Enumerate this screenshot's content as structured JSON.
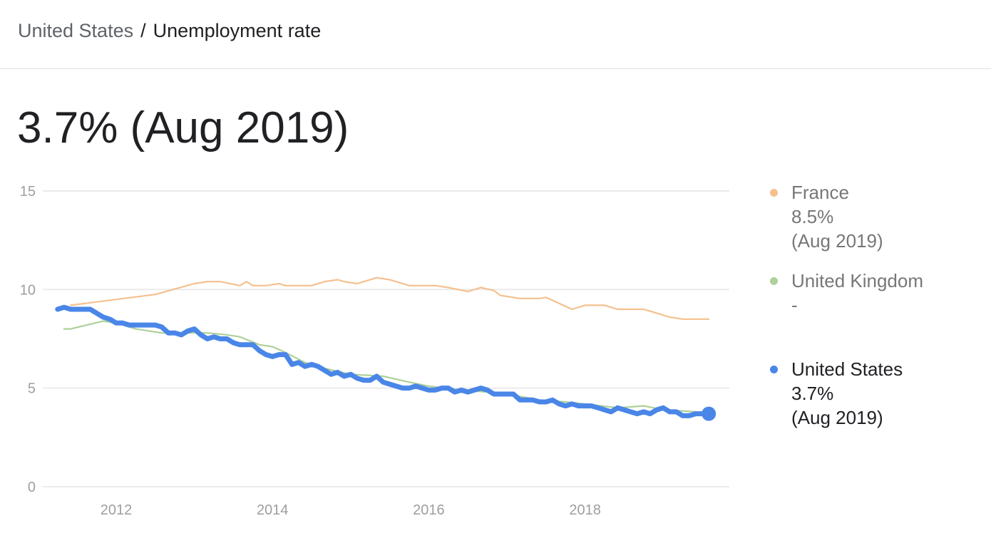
{
  "breadcrumb": {
    "country": "United States",
    "separator": "/",
    "metric": "Unemployment rate"
  },
  "headline": "3.7% (Aug 2019)",
  "legend": [
    {
      "name": "France",
      "value": "8.5%",
      "date": "(Aug 2019)",
      "color": "#f5c08e"
    },
    {
      "name": "United Kingdom",
      "value": "-",
      "date": "",
      "color": "#aed09a"
    },
    {
      "name": "United States",
      "value": "3.7%",
      "date": "(Aug 2019)",
      "color": "#4a86e8"
    }
  ],
  "chart_data": {
    "type": "line",
    "title": "",
    "xlabel": "",
    "ylabel": "",
    "ylim": [
      0,
      15
    ],
    "yticks": [
      "0",
      "5",
      "10",
      "15"
    ],
    "xticks": [
      "2012",
      "2014",
      "2016",
      "2018"
    ],
    "grid": true,
    "legend_position": "right",
    "series": [
      {
        "name": "France",
        "color": "#f5c08e",
        "points": [
          [
            "2011-06",
            9.2
          ],
          [
            "2012-07",
            9.75
          ],
          [
            "2013-01",
            10.3
          ],
          [
            "2013-03",
            10.4
          ],
          [
            "2013-05",
            10.4
          ],
          [
            "2013-08",
            10.2
          ],
          [
            "2013-09",
            10.4
          ],
          [
            "2013-10",
            10.2
          ],
          [
            "2013-12",
            10.2
          ],
          [
            "2014-02",
            10.3
          ],
          [
            "2014-03",
            10.2
          ],
          [
            "2014-07",
            10.2
          ],
          [
            "2014-09",
            10.4
          ],
          [
            "2014-11",
            10.5
          ],
          [
            "2014-12",
            10.4
          ],
          [
            "2015-02",
            10.3
          ],
          [
            "2015-05",
            10.6
          ],
          [
            "2015-07",
            10.5
          ],
          [
            "2015-10",
            10.2
          ],
          [
            "2016-02",
            10.2
          ],
          [
            "2016-04",
            10.1
          ],
          [
            "2016-07",
            9.9
          ],
          [
            "2016-09",
            10.1
          ],
          [
            "2016-11",
            9.95
          ],
          [
            "2016-12",
            9.7
          ],
          [
            "2017-03",
            9.55
          ],
          [
            "2017-06",
            9.55
          ],
          [
            "2017-07",
            9.6
          ],
          [
            "2017-11",
            9.0
          ],
          [
            "2018-01",
            9.2
          ],
          [
            "2018-04",
            9.2
          ],
          [
            "2018-06",
            9.0
          ],
          [
            "2018-10",
            9.0
          ],
          [
            "2018-11",
            8.9
          ],
          [
            "2019-02",
            8.6
          ],
          [
            "2019-04",
            8.5
          ],
          [
            "2019-08",
            8.5
          ]
        ]
      },
      {
        "name": "United Kingdom",
        "color": "#aed09a",
        "points": [
          [
            "2011-05",
            8.0
          ],
          [
            "2011-06",
            8.0
          ],
          [
            "2011-11",
            8.4
          ],
          [
            "2012-01",
            8.3
          ],
          [
            "2012-04",
            8.0
          ],
          [
            "2012-06",
            7.9
          ],
          [
            "2012-08",
            7.8
          ],
          [
            "2012-11",
            7.8
          ],
          [
            "2013-03",
            7.8
          ],
          [
            "2013-06",
            7.7
          ],
          [
            "2013-08",
            7.6
          ],
          [
            "2013-11",
            7.2
          ],
          [
            "2014-01",
            7.1
          ],
          [
            "2014-03",
            6.8
          ],
          [
            "2014-06",
            6.3
          ],
          [
            "2014-09",
            6.0
          ],
          [
            "2015-01",
            5.7
          ],
          [
            "2015-06",
            5.6
          ],
          [
            "2015-10",
            5.3
          ],
          [
            "2016-01",
            5.1
          ],
          [
            "2016-06",
            4.9
          ],
          [
            "2016-10",
            4.8
          ],
          [
            "2017-01",
            4.7
          ],
          [
            "2017-06",
            4.4
          ],
          [
            "2017-10",
            4.3
          ],
          [
            "2018-01",
            4.2
          ],
          [
            "2018-06",
            4.0
          ],
          [
            "2018-10",
            4.1
          ],
          [
            "2019-01",
            3.9
          ],
          [
            "2019-06",
            3.8
          ]
        ]
      },
      {
        "name": "United States",
        "color": "#4a86e8",
        "points": [
          [
            "2011-04",
            9.0
          ],
          [
            "2011-05",
            9.1
          ],
          [
            "2011-06",
            9.0
          ],
          [
            "2011-07",
            9.0
          ],
          [
            "2011-08",
            9.0
          ],
          [
            "2011-09",
            9.0
          ],
          [
            "2011-10",
            8.8
          ],
          [
            "2011-11",
            8.6
          ],
          [
            "2011-12",
            8.5
          ],
          [
            "2012-01",
            8.3
          ],
          [
            "2012-02",
            8.3
          ],
          [
            "2012-03",
            8.2
          ],
          [
            "2012-04",
            8.2
          ],
          [
            "2012-05",
            8.2
          ],
          [
            "2012-06",
            8.2
          ],
          [
            "2012-07",
            8.2
          ],
          [
            "2012-08",
            8.1
          ],
          [
            "2012-09",
            7.8
          ],
          [
            "2012-10",
            7.8
          ],
          [
            "2012-11",
            7.7
          ],
          [
            "2012-12",
            7.9
          ],
          [
            "2013-01",
            8.0
          ],
          [
            "2013-02",
            7.7
          ],
          [
            "2013-03",
            7.5
          ],
          [
            "2013-04",
            7.6
          ],
          [
            "2013-05",
            7.5
          ],
          [
            "2013-06",
            7.5
          ],
          [
            "2013-07",
            7.3
          ],
          [
            "2013-08",
            7.2
          ],
          [
            "2013-09",
            7.2
          ],
          [
            "2013-10",
            7.2
          ],
          [
            "2013-11",
            6.9
          ],
          [
            "2013-12",
            6.7
          ],
          [
            "2014-01",
            6.6
          ],
          [
            "2014-02",
            6.7
          ],
          [
            "2014-03",
            6.7
          ],
          [
            "2014-04",
            6.2
          ],
          [
            "2014-05",
            6.3
          ],
          [
            "2014-06",
            6.1
          ],
          [
            "2014-07",
            6.2
          ],
          [
            "2014-08",
            6.1
          ],
          [
            "2014-09",
            5.9
          ],
          [
            "2014-10",
            5.7
          ],
          [
            "2014-11",
            5.8
          ],
          [
            "2014-12",
            5.6
          ],
          [
            "2015-01",
            5.7
          ],
          [
            "2015-02",
            5.5
          ],
          [
            "2015-03",
            5.4
          ],
          [
            "2015-04",
            5.4
          ],
          [
            "2015-05",
            5.6
          ],
          [
            "2015-06",
            5.3
          ],
          [
            "2015-07",
            5.2
          ],
          [
            "2015-08",
            5.1
          ],
          [
            "2015-09",
            5.0
          ],
          [
            "2015-10",
            5.0
          ],
          [
            "2015-11",
            5.1
          ],
          [
            "2015-12",
            5.0
          ],
          [
            "2016-01",
            4.9
          ],
          [
            "2016-02",
            4.9
          ],
          [
            "2016-03",
            5.0
          ],
          [
            "2016-04",
            5.0
          ],
          [
            "2016-05",
            4.8
          ],
          [
            "2016-06",
            4.9
          ],
          [
            "2016-07",
            4.8
          ],
          [
            "2016-08",
            4.9
          ],
          [
            "2016-09",
            5.0
          ],
          [
            "2016-10",
            4.9
          ],
          [
            "2016-11",
            4.7
          ],
          [
            "2016-12",
            4.7
          ],
          [
            "2017-01",
            4.7
          ],
          [
            "2017-02",
            4.7
          ],
          [
            "2017-03",
            4.4
          ],
          [
            "2017-04",
            4.4
          ],
          [
            "2017-05",
            4.4
          ],
          [
            "2017-06",
            4.3
          ],
          [
            "2017-07",
            4.3
          ],
          [
            "2017-08",
            4.4
          ],
          [
            "2017-09",
            4.2
          ],
          [
            "2017-10",
            4.1
          ],
          [
            "2017-11",
            4.2
          ],
          [
            "2017-12",
            4.1
          ],
          [
            "2018-01",
            4.1
          ],
          [
            "2018-02",
            4.1
          ],
          [
            "2018-03",
            4.0
          ],
          [
            "2018-04",
            3.9
          ],
          [
            "2018-05",
            3.8
          ],
          [
            "2018-06",
            4.0
          ],
          [
            "2018-07",
            3.9
          ],
          [
            "2018-08",
            3.8
          ],
          [
            "2018-09",
            3.7
          ],
          [
            "2018-10",
            3.8
          ],
          [
            "2018-11",
            3.7
          ],
          [
            "2018-12",
            3.9
          ],
          [
            "2019-01",
            4.0
          ],
          [
            "2019-02",
            3.8
          ],
          [
            "2019-03",
            3.8
          ],
          [
            "2019-04",
            3.6
          ],
          [
            "2019-05",
            3.6
          ],
          [
            "2019-06",
            3.7
          ],
          [
            "2019-07",
            3.7
          ],
          [
            "2019-08",
            3.7
          ]
        ]
      }
    ]
  }
}
